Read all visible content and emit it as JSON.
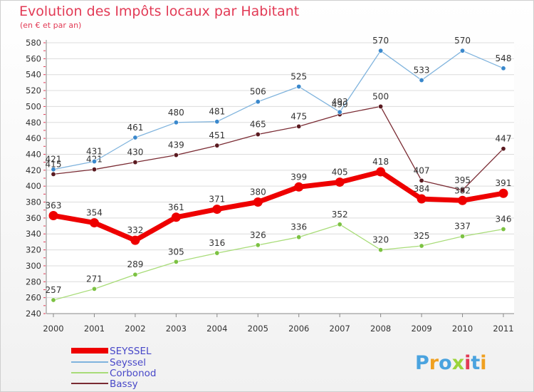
{
  "header": {
    "title": "Evolution des Impôts locaux par Habitant",
    "subtitle": "(en € et par an)"
  },
  "logo": {
    "text": "Proxiti",
    "letters": [
      {
        "ch": "P",
        "color": "#4aa3df"
      },
      {
        "ch": "r",
        "color": "#f0a020"
      },
      {
        "ch": "o",
        "color": "#4aa3df"
      },
      {
        "ch": "x",
        "color": "#9bd43a"
      },
      {
        "ch": "i",
        "color": "#e23a55"
      },
      {
        "ch": "t",
        "color": "#4aa3df"
      },
      {
        "ch": "i",
        "color": "#f0a020"
      }
    ]
  },
  "chart_data": {
    "type": "line",
    "title": "Evolution des Impôts locaux par Habitant",
    "subtitle": "(en € et par an)",
    "xlabel": "",
    "ylabel": "",
    "categories": [
      "2000",
      "2001",
      "2002",
      "2003",
      "2004",
      "2005",
      "2006",
      "2007",
      "2008",
      "2009",
      "2010",
      "2011"
    ],
    "ylim": [
      240,
      580
    ],
    "yticks": [
      240,
      260,
      280,
      300,
      320,
      340,
      360,
      380,
      400,
      420,
      440,
      460,
      480,
      500,
      520,
      540,
      560,
      580
    ],
    "grid": "horizontal",
    "legend_position": "bottom-left",
    "series": [
      {
        "name": "Bassy",
        "color": "#7a2b33",
        "marker": "#5a1a20",
        "width": 1.3,
        "labels": [
          415,
          421,
          430,
          439,
          451,
          465,
          475,
          490,
          500,
          407,
          395,
          447
        ],
        "values": [
          415,
          421,
          430,
          439,
          451,
          465,
          475,
          490,
          500,
          407,
          395,
          447
        ]
      },
      {
        "name": "Corbonod",
        "color": "#a8dc78",
        "marker": "#7cc242",
        "width": 1.3,
        "labels": [
          257,
          271,
          289,
          305,
          316,
          326,
          336,
          352,
          320,
          325,
          337,
          346
        ],
        "values": [
          257,
          271,
          289,
          305,
          316,
          326,
          336,
          352,
          320,
          325,
          337,
          346
        ]
      },
      {
        "name": "Seyssel",
        "color": "#7fb3dd",
        "marker": "#3a88cc",
        "width": 1.3,
        "labels": [
          421,
          431,
          461,
          480,
          481,
          506,
          525,
          493,
          570,
          533,
          570,
          548
        ],
        "values": [
          421,
          431,
          461,
          480,
          481,
          506,
          525,
          493,
          570,
          533,
          570,
          548
        ]
      },
      {
        "name": "SEYSSEL",
        "color": "#ee0000",
        "marker": "#ee0000",
        "width": 7,
        "labels": [
          363,
          354,
          332,
          361,
          371,
          380,
          399,
          405,
          418,
          384,
          382,
          391
        ],
        "values": [
          363,
          354,
          332,
          361,
          371,
          380,
          399,
          405,
          418,
          384,
          382,
          391
        ]
      }
    ],
    "legend": [
      "SEYSSEL",
      "Seyssel",
      "Corbonod",
      "Bassy"
    ]
  }
}
